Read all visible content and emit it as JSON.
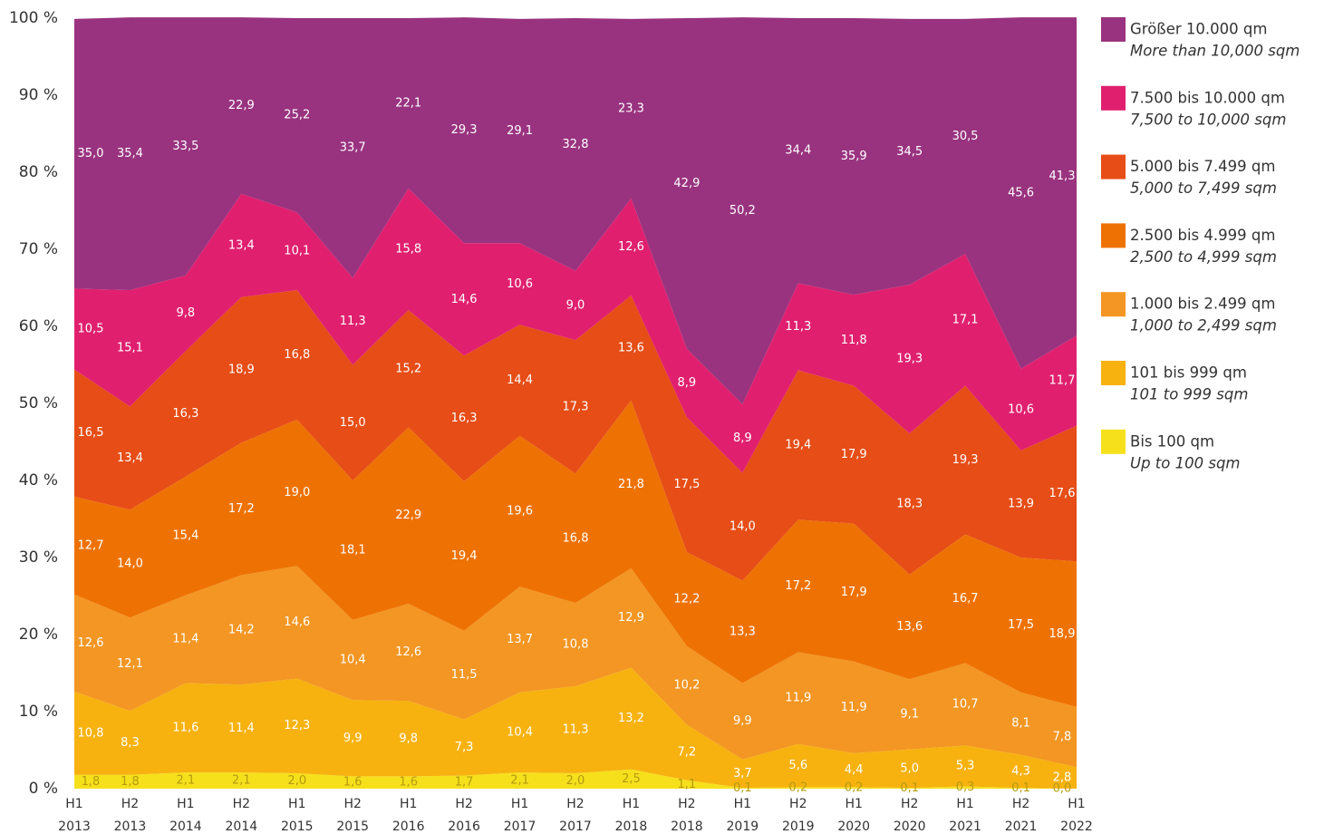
{
  "chart_data": {
    "type": "area",
    "stacked": true,
    "categories": [
      [
        "H1",
        "2013"
      ],
      [
        "H2",
        "2013"
      ],
      [
        "H1",
        "2014"
      ],
      [
        "H2",
        "2014"
      ],
      [
        "H1",
        "2015"
      ],
      [
        "H2",
        "2015"
      ],
      [
        "H1",
        "2016"
      ],
      [
        "H2",
        "2016"
      ],
      [
        "H1",
        "2017"
      ],
      [
        "H2",
        "2017"
      ],
      [
        "H1",
        "2018"
      ],
      [
        "H2",
        "2018"
      ],
      [
        "H1",
        "2019"
      ],
      [
        "H2",
        "2019"
      ],
      [
        "H1",
        "2020"
      ],
      [
        "H2",
        "2020"
      ],
      [
        "H1",
        "2021"
      ],
      [
        "H2",
        "2021"
      ],
      [
        "H1",
        "2022"
      ]
    ],
    "ylim": [
      0,
      100
    ],
    "yticks": [
      {
        "value": 0,
        "label": "0 %"
      },
      {
        "value": 10,
        "label": "10 %"
      },
      {
        "value": 20,
        "label": "20 %"
      },
      {
        "value": 30,
        "label": "30 %"
      },
      {
        "value": 40,
        "label": "40 %"
      },
      {
        "value": 50,
        "label": "50 %"
      },
      {
        "value": 60,
        "label": "60 %"
      },
      {
        "value": 70,
        "label": "70 %"
      },
      {
        "value": 80,
        "label": "80 %"
      },
      {
        "value": 90,
        "label": "90 %"
      },
      {
        "value": 100,
        "label": "100 %"
      }
    ],
    "series": [
      {
        "name": "Bis 100 qm",
        "name_en": "Up to 100 sqm",
        "color": "#f6e01c",
        "label_color": "#b59a10",
        "values": [
          1.8,
          1.8,
          2.1,
          2.1,
          2.0,
          1.6,
          1.6,
          1.7,
          2.1,
          2.0,
          2.5,
          1.1,
          0.1,
          0.2,
          0.2,
          0.1,
          0.3,
          0.1,
          0.0
        ],
        "value_labels": [
          "1,8",
          "1,8",
          "2,1",
          "2,1",
          "2,0",
          "1,6",
          "1,6",
          "1,7",
          "2,1",
          "2,0",
          "2,5",
          "1,1",
          "0,1",
          "0,2",
          "0,2",
          "0,1",
          "0,3",
          "0,1",
          "0,0"
        ]
      },
      {
        "name": "101 bis 999 qm",
        "name_en": "101 to 999 sqm",
        "color": "#f7b20f",
        "label_color": "#ffffff",
        "values": [
          10.8,
          8.3,
          11.6,
          11.4,
          12.3,
          9.9,
          9.8,
          7.3,
          10.4,
          11.3,
          13.2,
          7.2,
          3.7,
          5.6,
          4.4,
          5.0,
          5.3,
          4.3,
          2.8
        ],
        "value_labels": [
          "10,8",
          "8,3",
          "11,6",
          "11,4",
          "12,3",
          "9,9",
          "9,8",
          "7,3",
          "10,4",
          "11,3",
          "13,2",
          "7,2",
          "3,7",
          "5,6",
          "4,4",
          "5,0",
          "5,3",
          "4,3",
          "2,8"
        ]
      },
      {
        "name": "1.000 bis 2.499 qm",
        "name_en": "1,000 to 2,499 sqm",
        "color": "#f39623",
        "label_color": "#ffffff",
        "values": [
          12.6,
          12.1,
          11.4,
          14.2,
          14.6,
          10.4,
          12.6,
          11.5,
          13.7,
          10.8,
          12.9,
          10.2,
          9.9,
          11.9,
          11.9,
          9.1,
          10.7,
          8.1,
          7.8
        ],
        "value_labels": [
          "12,6",
          "12,1",
          "11,4",
          "14,2",
          "14,6",
          "10,4",
          "12,6",
          "11,5",
          "13,7",
          "10,8",
          "12,9",
          "10,2",
          "9,9",
          "11,9",
          "11,9",
          "9,1",
          "10,7",
          "8,1",
          "7,8"
        ]
      },
      {
        "name": "2.500 bis 4.999 qm",
        "name_en": "2,500 to 4,999 sqm",
        "color": "#ee7203",
        "label_color": "#ffffff",
        "values": [
          12.7,
          14.0,
          15.4,
          17.2,
          19.0,
          18.1,
          22.9,
          19.4,
          19.6,
          16.8,
          21.8,
          12.2,
          13.3,
          17.2,
          17.9,
          13.6,
          16.7,
          17.5,
          18.9
        ],
        "value_labels": [
          "12,7",
          "14,0",
          "15,4",
          "17,2",
          "19,0",
          "18,1",
          "22,9",
          "19,4",
          "19,6",
          "16,8",
          "21,8",
          "12,2",
          "13,3",
          "17,2",
          "17,9",
          "13,6",
          "16,7",
          "17,5",
          "18,9"
        ]
      },
      {
        "name": "5.000 bis 7.499 qm",
        "name_en": "5,000 to 7,499 sqm",
        "color": "#e64d17",
        "label_color": "#ffffff",
        "values": [
          16.5,
          13.4,
          16.3,
          18.9,
          16.8,
          15.0,
          15.2,
          16.3,
          14.4,
          17.3,
          13.6,
          17.5,
          14.0,
          19.4,
          17.9,
          18.3,
          19.3,
          13.9,
          17.6
        ],
        "value_labels": [
          "16,5",
          "13,4",
          "16,3",
          "18,9",
          "16,8",
          "15,0",
          "15,2",
          "16,3",
          "14,4",
          "17,3",
          "13,6",
          "17,5",
          "14,0",
          "19,4",
          "17,9",
          "18,3",
          "19,3",
          "13,9",
          "17,6"
        ]
      },
      {
        "name": "7.500 bis 10.000 qm",
        "name_en": "7,500 to 10,000 sqm",
        "color": "#e0206f",
        "label_color": "#ffffff",
        "values": [
          10.5,
          15.1,
          9.8,
          13.4,
          10.1,
          11.3,
          15.8,
          14.6,
          10.6,
          9.0,
          12.6,
          8.9,
          8.9,
          11.3,
          11.8,
          19.3,
          17.1,
          10.6,
          11.7
        ],
        "value_labels": [
          "10,5",
          "15,1",
          "9,8",
          "13,4",
          "10,1",
          "11,3",
          "15,8",
          "14,6",
          "10,6",
          "9,0",
          "12,6",
          "8,9",
          "8,9",
          "11,3",
          "11,8",
          "19,3",
          "17,1",
          "10,6",
          "11,7"
        ]
      },
      {
        "name": "Größer 10.000 qm",
        "name_en": "More than 10,000 sqm",
        "color": "#99337f",
        "label_color": "#ffffff",
        "values": [
          35.0,
          35.4,
          33.5,
          22.9,
          25.2,
          33.7,
          22.1,
          29.3,
          29.1,
          32.8,
          23.3,
          42.9,
          50.2,
          34.4,
          35.9,
          34.5,
          30.5,
          45.6,
          41.3
        ],
        "value_labels": [
          "35,0",
          "35,4",
          "33,5",
          "22,9",
          "25,2",
          "33,7",
          "22,1",
          "29,3",
          "29,1",
          "32,8",
          "23,3",
          "42,9",
          "50,2",
          "34,4",
          "35,9",
          "34,5",
          "30,5",
          "45,6",
          "41,3"
        ]
      }
    ]
  }
}
